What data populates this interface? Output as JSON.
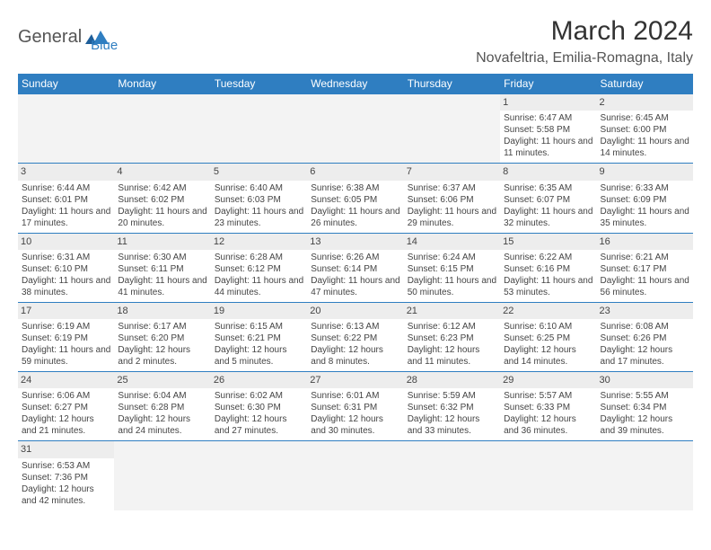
{
  "header": {
    "logo_part1": "General",
    "logo_part2": "Blue",
    "month_title": "March 2024",
    "location": "Novafeltria, Emilia-Romagna, Italy"
  },
  "colors": {
    "header_blue": "#2f7ec1",
    "daynum_bg": "#ededed",
    "empty_bg": "#f3f3f3",
    "text": "#444444",
    "title_text": "#333333"
  },
  "daynames": [
    "Sunday",
    "Monday",
    "Tuesday",
    "Wednesday",
    "Thursday",
    "Friday",
    "Saturday"
  ],
  "days": {
    "1": {
      "sunrise": "6:47 AM",
      "sunset": "5:58 PM",
      "daylight": "11 hours and 11 minutes."
    },
    "2": {
      "sunrise": "6:45 AM",
      "sunset": "6:00 PM",
      "daylight": "11 hours and 14 minutes."
    },
    "3": {
      "sunrise": "6:44 AM",
      "sunset": "6:01 PM",
      "daylight": "11 hours and 17 minutes."
    },
    "4": {
      "sunrise": "6:42 AM",
      "sunset": "6:02 PM",
      "daylight": "11 hours and 20 minutes."
    },
    "5": {
      "sunrise": "6:40 AM",
      "sunset": "6:03 PM",
      "daylight": "11 hours and 23 minutes."
    },
    "6": {
      "sunrise": "6:38 AM",
      "sunset": "6:05 PM",
      "daylight": "11 hours and 26 minutes."
    },
    "7": {
      "sunrise": "6:37 AM",
      "sunset": "6:06 PM",
      "daylight": "11 hours and 29 minutes."
    },
    "8": {
      "sunrise": "6:35 AM",
      "sunset": "6:07 PM",
      "daylight": "11 hours and 32 minutes."
    },
    "9": {
      "sunrise": "6:33 AM",
      "sunset": "6:09 PM",
      "daylight": "11 hours and 35 minutes."
    },
    "10": {
      "sunrise": "6:31 AM",
      "sunset": "6:10 PM",
      "daylight": "11 hours and 38 minutes."
    },
    "11": {
      "sunrise": "6:30 AM",
      "sunset": "6:11 PM",
      "daylight": "11 hours and 41 minutes."
    },
    "12": {
      "sunrise": "6:28 AM",
      "sunset": "6:12 PM",
      "daylight": "11 hours and 44 minutes."
    },
    "13": {
      "sunrise": "6:26 AM",
      "sunset": "6:14 PM",
      "daylight": "11 hours and 47 minutes."
    },
    "14": {
      "sunrise": "6:24 AM",
      "sunset": "6:15 PM",
      "daylight": "11 hours and 50 minutes."
    },
    "15": {
      "sunrise": "6:22 AM",
      "sunset": "6:16 PM",
      "daylight": "11 hours and 53 minutes."
    },
    "16": {
      "sunrise": "6:21 AM",
      "sunset": "6:17 PM",
      "daylight": "11 hours and 56 minutes."
    },
    "17": {
      "sunrise": "6:19 AM",
      "sunset": "6:19 PM",
      "daylight": "11 hours and 59 minutes."
    },
    "18": {
      "sunrise": "6:17 AM",
      "sunset": "6:20 PM",
      "daylight": "12 hours and 2 minutes."
    },
    "19": {
      "sunrise": "6:15 AM",
      "sunset": "6:21 PM",
      "daylight": "12 hours and 5 minutes."
    },
    "20": {
      "sunrise": "6:13 AM",
      "sunset": "6:22 PM",
      "daylight": "12 hours and 8 minutes."
    },
    "21": {
      "sunrise": "6:12 AM",
      "sunset": "6:23 PM",
      "daylight": "12 hours and 11 minutes."
    },
    "22": {
      "sunrise": "6:10 AM",
      "sunset": "6:25 PM",
      "daylight": "12 hours and 14 minutes."
    },
    "23": {
      "sunrise": "6:08 AM",
      "sunset": "6:26 PM",
      "daylight": "12 hours and 17 minutes."
    },
    "24": {
      "sunrise": "6:06 AM",
      "sunset": "6:27 PM",
      "daylight": "12 hours and 21 minutes."
    },
    "25": {
      "sunrise": "6:04 AM",
      "sunset": "6:28 PM",
      "daylight": "12 hours and 24 minutes."
    },
    "26": {
      "sunrise": "6:02 AM",
      "sunset": "6:30 PM",
      "daylight": "12 hours and 27 minutes."
    },
    "27": {
      "sunrise": "6:01 AM",
      "sunset": "6:31 PM",
      "daylight": "12 hours and 30 minutes."
    },
    "28": {
      "sunrise": "5:59 AM",
      "sunset": "6:32 PM",
      "daylight": "12 hours and 33 minutes."
    },
    "29": {
      "sunrise": "5:57 AM",
      "sunset": "6:33 PM",
      "daylight": "12 hours and 36 minutes."
    },
    "30": {
      "sunrise": "5:55 AM",
      "sunset": "6:34 PM",
      "daylight": "12 hours and 39 minutes."
    },
    "31": {
      "sunrise": "6:53 AM",
      "sunset": "7:36 PM",
      "daylight": "12 hours and 42 minutes."
    }
  },
  "layout": {
    "first_day_column": 5,
    "num_days": 31,
    "labels": {
      "sunrise": "Sunrise: ",
      "sunset": "Sunset: ",
      "daylight": "Daylight: "
    }
  }
}
